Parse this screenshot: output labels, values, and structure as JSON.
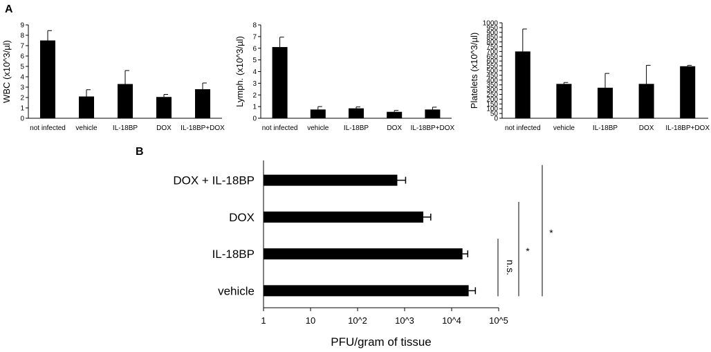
{
  "panel_labels": {
    "a": "A",
    "b": "B"
  },
  "colors": {
    "bar": "#000000",
    "axis": "#000000"
  },
  "chart_data": [
    {
      "type": "bar",
      "title": "",
      "xlabel": "",
      "ylabel": "WBC (x10^3/µl)",
      "ylim": [
        0,
        9
      ],
      "yticks": [
        "0",
        "1",
        "2",
        "3",
        "4",
        "5",
        "6",
        "7",
        "8",
        "9"
      ],
      "categories": [
        "not infected",
        "vehicle",
        "IL-18BP",
        "DOX",
        "IL-18BP+DOX"
      ],
      "values": [
        7.5,
        2.1,
        3.3,
        2.05,
        2.8
      ],
      "errors": [
        0.95,
        0.65,
        1.3,
        0.25,
        0.6
      ]
    },
    {
      "type": "bar",
      "title": "",
      "xlabel": "",
      "ylabel": "Lymph. (x10^3/µl)",
      "ylim": [
        0,
        8
      ],
      "yticks": [
        "0",
        "1",
        "2",
        "3",
        "4",
        "5",
        "6",
        "7",
        "8"
      ],
      "categories": [
        "not infected",
        "vehicle",
        "IL-18BP",
        "DOX",
        "IL-18BP+DOX"
      ],
      "values": [
        6.1,
        0.75,
        0.85,
        0.55,
        0.75
      ],
      "errors": [
        0.85,
        0.25,
        0.12,
        0.12,
        0.2
      ]
    },
    {
      "type": "bar",
      "title": "",
      "xlabel": "",
      "ylabel": "Platelets (x10^3/µl)",
      "ylim": [
        0,
        1000
      ],
      "yticks": [
        "0",
        "50",
        "100",
        "150",
        "200",
        "250",
        "300",
        "350",
        "400",
        "450",
        "500",
        "550",
        "600",
        "650",
        "700",
        "750",
        "800",
        "850",
        "900",
        "950",
        "1000"
      ],
      "categories": [
        "not infected",
        "vehicle",
        "IL-18BP",
        "DOX",
        "IL-18BP+DOX"
      ],
      "values": [
        700,
        360,
        320,
        360,
        545
      ],
      "errors": [
        235,
        15,
        150,
        195,
        10
      ]
    },
    {
      "type": "bar",
      "orientation": "horizontal",
      "title": "",
      "xlabel": "PFU/gram of tissue",
      "ylabel": "",
      "xscale": "log",
      "xlim": [
        1,
        100000
      ],
      "xticks": [
        "1",
        "10",
        "10^2",
        "10^3",
        "10^4",
        "10^5"
      ],
      "categories": [
        "DOX + IL-18BP",
        "DOX",
        "IL-18BP",
        "vehicle"
      ],
      "values": [
        700,
        2500,
        17000,
        23000
      ],
      "error_upper": [
        1050,
        3600,
        22000,
        32000
      ],
      "annotations": [
        {
          "text": "n.s.",
          "between": [
            "IL-18BP",
            "vehicle"
          ]
        },
        {
          "text": "*",
          "between": [
            "DOX",
            "vehicle"
          ]
        },
        {
          "text": "*",
          "between": [
            "DOX + IL-18BP",
            "vehicle"
          ]
        }
      ]
    }
  ]
}
